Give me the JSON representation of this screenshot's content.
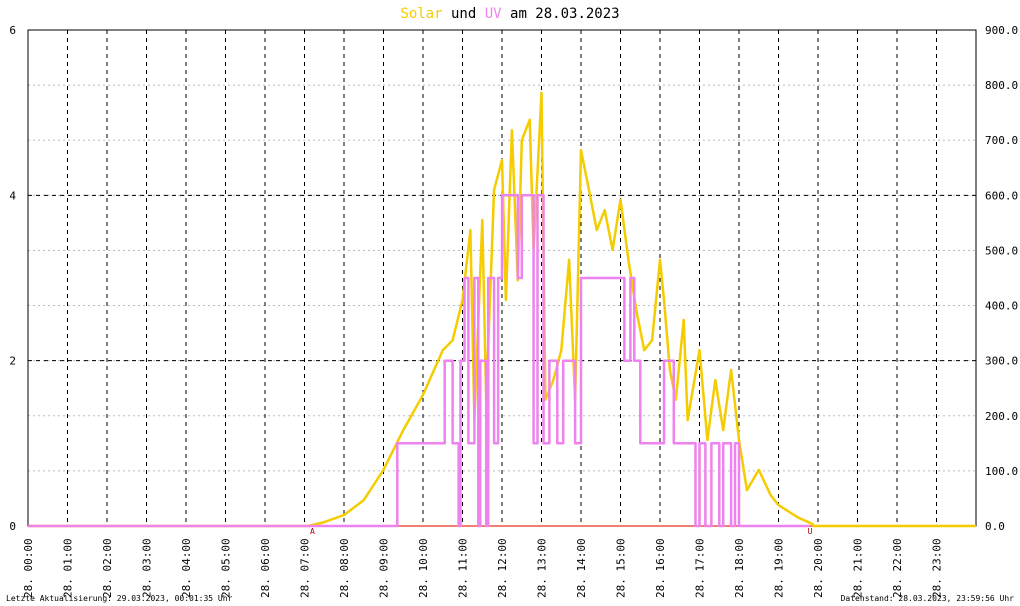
{
  "chart_data": {
    "type": "line",
    "title_text": [
      "und",
      "am 28.03.2023"
    ],
    "footer_left": "Letzte Aktualisierung: 29.03.2023, 00:01:35 Uhr",
    "footer_right": "Datenstand: 28.03.2023, 23:59:56 Uhr",
    "xlim": [
      0,
      24
    ],
    "xticks": [
      {
        "value": 0,
        "label": "28. 00:00"
      },
      {
        "value": 1,
        "label": "28. 01:00"
      },
      {
        "value": 2,
        "label": "28. 02:00"
      },
      {
        "value": 3,
        "label": "28. 03:00"
      },
      {
        "value": 4,
        "label": "28. 04:00"
      },
      {
        "value": 5,
        "label": "28. 05:00"
      },
      {
        "value": 6,
        "label": "28. 06:00"
      },
      {
        "value": 7,
        "label": "28. 07:00"
      },
      {
        "value": 8,
        "label": "28. 08:00"
      },
      {
        "value": 9,
        "label": "28. 09:00"
      },
      {
        "value": 10,
        "label": "28. 10:00"
      },
      {
        "value": 11,
        "label": "28. 11:00"
      },
      {
        "value": 12,
        "label": "28. 12:00"
      },
      {
        "value": 13,
        "label": "28. 13:00"
      },
      {
        "value": 14,
        "label": "28. 14:00"
      },
      {
        "value": 15,
        "label": "28. 15:00"
      },
      {
        "value": 16,
        "label": "28. 16:00"
      },
      {
        "value": 17,
        "label": "28. 17:00"
      },
      {
        "value": 18,
        "label": "28. 18:00"
      },
      {
        "value": 19,
        "label": "28. 19:00"
      },
      {
        "value": 20,
        "label": "28. 20:00"
      },
      {
        "value": 21,
        "label": "28. 21:00"
      },
      {
        "value": 22,
        "label": "28. 22:00"
      },
      {
        "value": 23,
        "label": "28. 23:00"
      }
    ],
    "ylim": [
      0,
      6
    ],
    "yticks": [
      0,
      2,
      4,
      6
    ],
    "y2lim": [
      0,
      900
    ],
    "y2ticks": [
      {
        "value": 0,
        "label": "0.0"
      },
      {
        "value": 100,
        "label": "100.0"
      },
      {
        "value": 200,
        "label": "200.0"
      },
      {
        "value": 300,
        "label": "300.0"
      },
      {
        "value": 400,
        "label": "400.0"
      },
      {
        "value": 500,
        "label": "500.0"
      },
      {
        "value": 600,
        "label": "600.0"
      },
      {
        "value": 700,
        "label": "700.0"
      },
      {
        "value": 800,
        "label": "800.0"
      },
      {
        "value": 900,
        "label": "900.0"
      }
    ],
    "grid": true,
    "annotations": [
      {
        "text": "A",
        "x": 7.2
      },
      {
        "text": "U",
        "x": 19.8
      }
    ],
    "series": [
      {
        "name": "Solar",
        "color": "#f5cc00",
        "axis": "y2",
        "x": [
          0,
          7.1,
          7.5,
          8.0,
          8.5,
          9.0,
          9.5,
          10.0,
          10.5,
          10.75,
          11.0,
          11.2,
          11.3,
          11.5,
          11.6,
          11.8,
          12.0,
          12.1,
          12.25,
          12.4,
          12.5,
          12.7,
          12.8,
          13.0,
          13.1,
          13.3,
          13.5,
          13.7,
          13.85,
          14.0,
          14.2,
          14.4,
          14.6,
          14.8,
          15.0,
          15.2,
          15.4,
          15.6,
          15.8,
          16.0,
          16.1,
          16.25,
          16.4,
          16.6,
          16.7,
          17.0,
          17.2,
          17.4,
          17.6,
          17.8,
          18.0,
          18.2,
          18.5,
          18.8,
          19.0,
          19.5,
          19.85,
          19.9,
          24
        ],
        "values": [
          0,
          0,
          7,
          20,
          47,
          102,
          174,
          238,
          319,
          337,
          410,
          537,
          192,
          555,
          229,
          610,
          664,
          410,
          718,
          446,
          700,
          737,
          501,
          786,
          229,
          265,
          319,
          483,
          229,
          682,
          610,
          537,
          573,
          501,
          592,
          483,
          392,
          319,
          337,
          483,
          410,
          283,
          229,
          374,
          192,
          319,
          156,
          265,
          174,
          283,
          156,
          65,
          102,
          56,
          38,
          15,
          4,
          0,
          0
        ]
      },
      {
        "name": "UV",
        "color": "#ee82ee",
        "axis": "y",
        "x": [
          0,
          9.35,
          9.35,
          10.55,
          10.55,
          10.75,
          10.75,
          10.9,
          10.9,
          10.95,
          10.95,
          11.05,
          11.05,
          11.15,
          11.15,
          11.3,
          11.3,
          11.4,
          11.4,
          11.45,
          11.45,
          11.6,
          11.6,
          11.65,
          11.65,
          11.8,
          11.8,
          11.9,
          11.9,
          12.0,
          12.0,
          12.4,
          12.4,
          12.5,
          12.5,
          12.8,
          12.8,
          12.9,
          12.9,
          13.05,
          13.05,
          13.2,
          13.2,
          13.4,
          13.4,
          13.55,
          13.55,
          13.85,
          13.85,
          14.0,
          14.0,
          15.1,
          15.1,
          15.25,
          15.25,
          15.35,
          15.35,
          15.5,
          15.5,
          16.1,
          16.1,
          16.35,
          16.35,
          16.9,
          16.9,
          17.0,
          17.0,
          17.15,
          17.15,
          17.3,
          17.3,
          17.5,
          17.5,
          17.6,
          17.6,
          17.8,
          17.8,
          17.9,
          17.9,
          18.0,
          18.0,
          19.8
        ],
        "values": [
          0,
          0,
          1,
          1,
          2,
          2,
          1,
          1,
          0,
          0,
          2,
          2,
          3,
          3,
          1,
          1,
          3,
          3,
          0,
          0,
          2,
          2,
          0,
          0,
          3,
          3,
          1,
          1,
          3,
          3,
          4,
          4,
          3,
          3,
          4,
          4,
          1,
          1,
          4,
          4,
          1,
          1,
          2,
          2,
          1,
          1,
          2,
          2,
          1,
          1,
          3,
          3,
          2,
          2,
          3,
          3,
          2,
          2,
          1,
          1,
          2,
          2,
          1,
          1,
          0,
          0,
          1,
          1,
          0,
          0,
          1,
          1,
          0,
          0,
          1,
          1,
          0,
          0,
          1,
          1,
          0,
          0
        ]
      }
    ]
  }
}
